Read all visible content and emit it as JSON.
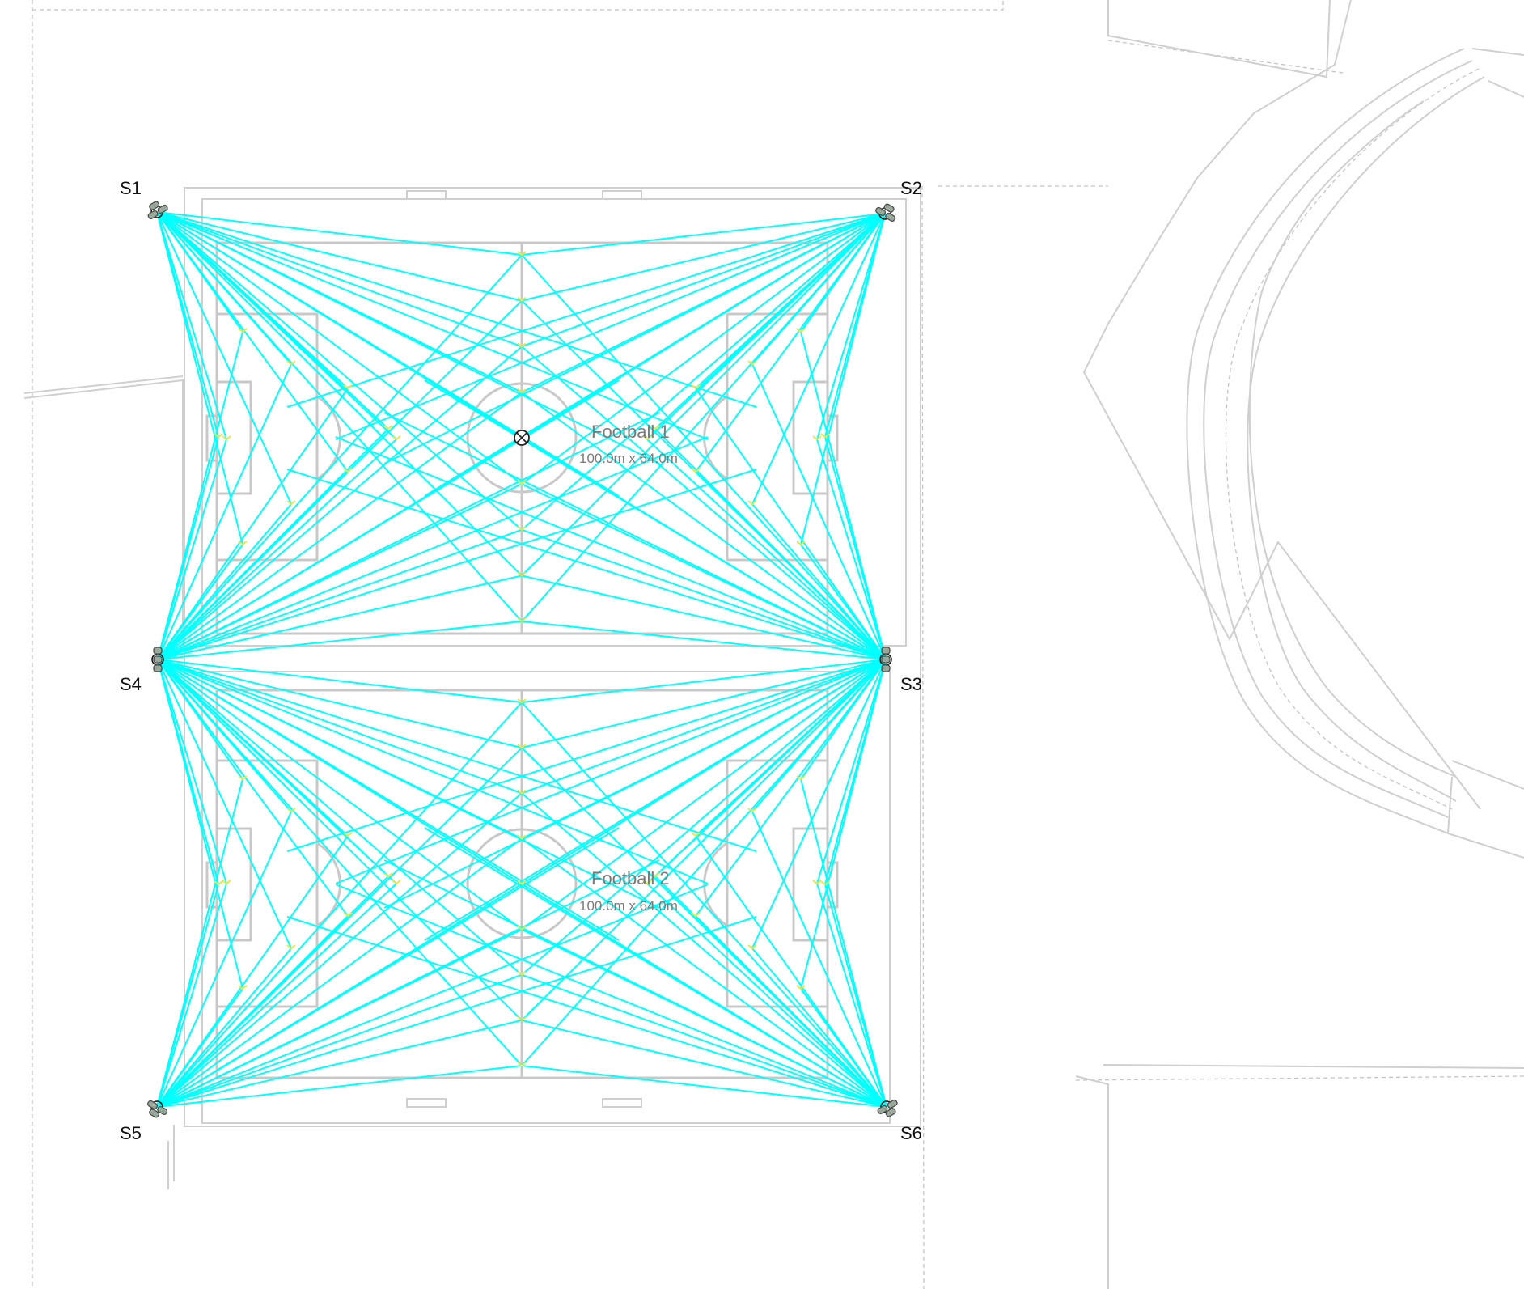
{
  "fields": [
    {
      "name": "Football 1",
      "dimensions": "100.0m x 64.0m"
    },
    {
      "name": "Football 2",
      "dimensions": "100.0m x 64.0m"
    }
  ],
  "masts": [
    "S1",
    "S2",
    "S3",
    "S4",
    "S5",
    "S6"
  ],
  "colors": {
    "beam": "#00ffff",
    "aim_point": "#e5e84a",
    "pitch_lines": "#c8c8c8",
    "site_lines": "#cfcfcf",
    "mast": "#9aa79b"
  },
  "icons": [
    "calculation-grid-origin-icon"
  ]
}
